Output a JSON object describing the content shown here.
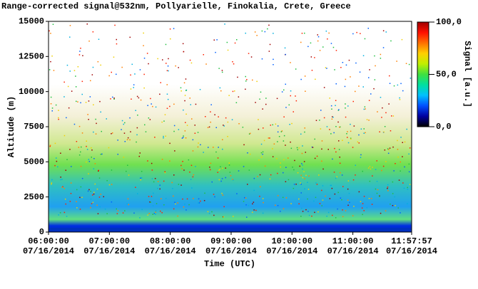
{
  "chart_data": {
    "type": "heatmap",
    "title": "Range-corrected signal@532nm, Pollyarielle, Finokalia, Crete, Greece",
    "x_label": "Time (UTC)",
    "y_label": "Altitude (m)",
    "xlim": [
      6,
      11.965833
    ],
    "xticks": [
      {
        "value": 6,
        "label": "06:00:00",
        "date": "07/16/2014"
      },
      {
        "value": 7,
        "label": "07:00:00",
        "date": "07/16/2014"
      },
      {
        "value": 8,
        "label": "08:00:00",
        "date": "07/16/2014"
      },
      {
        "value": 9,
        "label": "09:00:00",
        "date": "07/16/2014"
      },
      {
        "value": 10,
        "label": "10:00:00",
        "date": "07/16/2014"
      },
      {
        "value": 11,
        "label": "11:00:00",
        "date": "07/16/2014"
      },
      {
        "value": 11.965833,
        "label": "11:57:57",
        "date": "07/16/2014"
      }
    ],
    "ylim": [
      0,
      15000
    ],
    "yticks": [
      0,
      2500,
      5000,
      7500,
      10000,
      12500,
      15000
    ],
    "colorbar": {
      "label": "Signal [a.u.]",
      "lim": [
        0,
        100
      ],
      "ticks": [
        {
          "value": 0,
          "label": "0,0"
        },
        {
          "value": 50,
          "label": "50,0"
        },
        {
          "value": 100,
          "label": "100,0"
        }
      ],
      "colormap": [
        "#000000",
        "#0000a0",
        "#0050ff",
        "#00c0ff",
        "#00e0a0",
        "#40e040",
        "#c0f000",
        "#ffd000",
        "#ff7000",
        "#ff1000",
        "#a00000"
      ]
    }
  }
}
